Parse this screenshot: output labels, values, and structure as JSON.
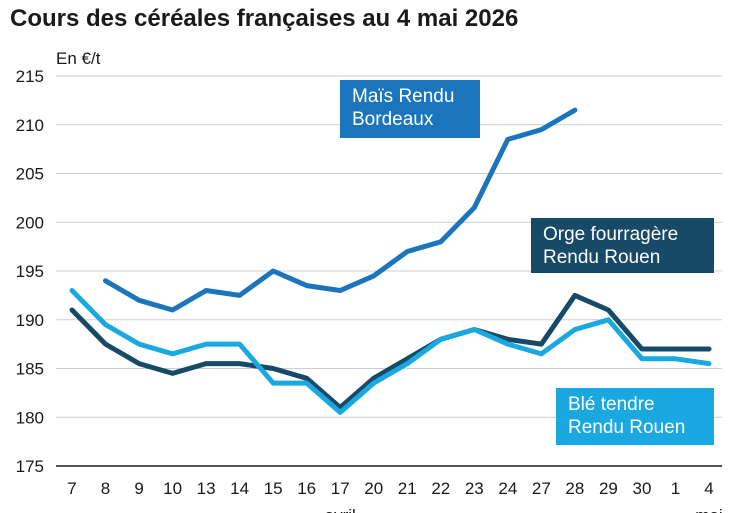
{
  "chart_data": {
    "type": "line",
    "title": "Cours des céréales françaises au 4 mai 2026",
    "ylabel": "En €/t",
    "ylim": [
      175,
      215
    ],
    "yticks": [
      175,
      180,
      185,
      190,
      195,
      200,
      205,
      210,
      215
    ],
    "grid": true,
    "categories": [
      "7",
      "8",
      "9",
      "10",
      "13",
      "14",
      "15",
      "16",
      "17",
      "20",
      "21",
      "22",
      "23",
      "24",
      "27",
      "28",
      "29",
      "30",
      "1",
      "4"
    ],
    "month_labels": [
      {
        "text": "avril",
        "category_index": 8
      },
      {
        "text": "mai",
        "category_index": 19
      }
    ],
    "series": [
      {
        "name": "Maïs Rendu Bordeaux",
        "label_lines": [
          "Maïs Rendu",
          "Bordeaux"
        ],
        "color": "#1b75bc",
        "values": [
          null,
          194,
          192,
          191,
          193,
          192.5,
          195,
          193.5,
          193,
          194.5,
          197,
          198,
          201.5,
          208.5,
          209.5,
          211.5,
          null,
          null,
          null,
          null
        ]
      },
      {
        "name": "Orge fourragère Rendu Rouen",
        "label_lines": [
          "Orge fourragère",
          "Rendu Rouen"
        ],
        "color": "#174a67",
        "values": [
          191,
          187.5,
          185.5,
          184.5,
          185.5,
          185.5,
          185,
          184,
          181,
          184,
          186,
          188,
          189,
          188,
          187.5,
          192.5,
          191,
          187,
          187,
          187
        ]
      },
      {
        "name": "Blé tendre Rendu Rouen",
        "label_lines": [
          "Blé tendre",
          "Rendu Rouen"
        ],
        "color": "#1aa8e0",
        "values": [
          193,
          189.5,
          187.5,
          186.5,
          187.5,
          187.5,
          183.5,
          183.5,
          180.5,
          183.5,
          185.5,
          188,
          189,
          187.5,
          186.5,
          189,
          190,
          186,
          186,
          185.5
        ]
      }
    ]
  }
}
